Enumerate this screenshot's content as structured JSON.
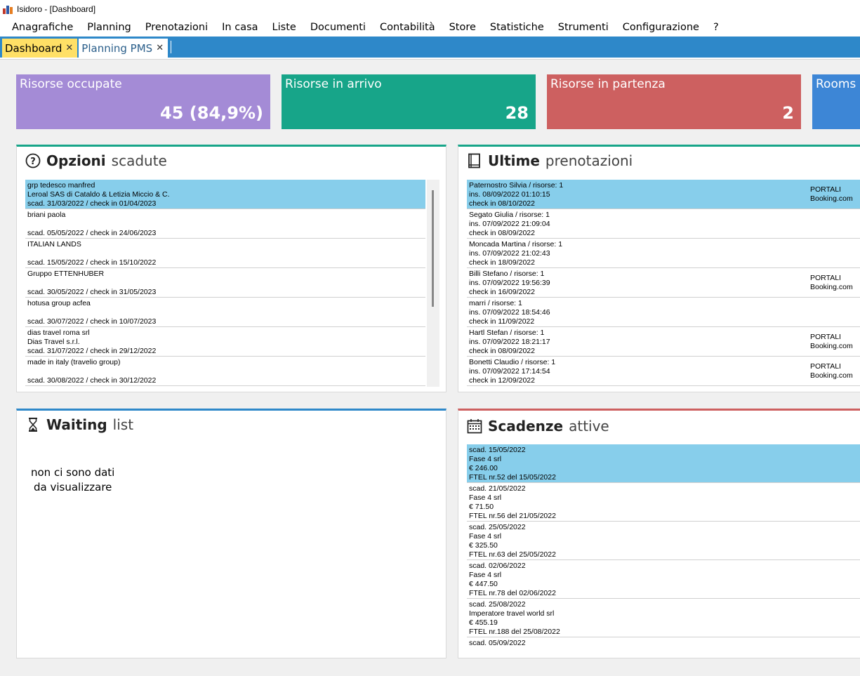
{
  "window": {
    "title": "Isidoro - [Dashboard]"
  },
  "menu": [
    "Anagrafiche",
    "Planning",
    "Prenotazioni",
    "In casa",
    "Liste",
    "Documenti",
    "Contabilità",
    "Store",
    "Statistiche",
    "Strumenti",
    "Configurazione",
    "?"
  ],
  "tabs": [
    {
      "label": "Dashboard",
      "close": "✕"
    },
    {
      "label": "Planning PMS",
      "close": "✕"
    }
  ],
  "kpis": [
    {
      "label": "Risorse occupate",
      "value": "45 (84,9%)",
      "color": "#a48bd6"
    },
    {
      "label": "Risorse in arrivo",
      "value": "28",
      "color": "#17a589"
    },
    {
      "label": "Risorse in partenza",
      "value": "2",
      "color": "#cd6060"
    },
    {
      "label": "Rooms",
      "value": "",
      "color": "#3d86d6"
    }
  ],
  "opzioni": {
    "title_bold": "Opzioni",
    "title_light": "scadute",
    "accent": "#17a589",
    "rows": [
      {
        "l1": "grp tedesco manfred",
        "l2": "Leroal SAS di Cataldo & Letizia Miccio & C.",
        "l3": "scad. 31/03/2022 / check in 01/04/2023"
      },
      {
        "l1": "briani paola",
        "l2": "",
        "l3": "scad. 05/05/2022 / check in 24/06/2023"
      },
      {
        "l1": "ITALIAN LANDS",
        "l2": "",
        "l3": "scad. 15/05/2022 / check in 15/10/2022"
      },
      {
        "l1": "Gruppo ETTENHUBER",
        "l2": "",
        "l3": "scad. 30/05/2022 / check in 31/05/2023"
      },
      {
        "l1": "hotusa group acfea",
        "l2": "",
        "l3": "scad. 30/07/2022 / check in 10/07/2023"
      },
      {
        "l1": "dias travel roma srl",
        "l2": "Dias Travel s.r.l.",
        "l3": "scad. 31/07/2022 / check in 29/12/2022"
      },
      {
        "l1": "made in italy (travelio group)",
        "l2": "",
        "l3": "scad. 30/08/2022 / check in 30/12/2022"
      }
    ]
  },
  "ultime": {
    "title_bold": "Ultime",
    "title_light": "prenotazioni",
    "accent": "#17a589",
    "rows": [
      {
        "l1": "Paternostro Silvia / risorse: 1",
        "l2": "ins. 08/09/2022 01:10:15",
        "l3": "check in 08/10/2022",
        "r1": "PORTALI",
        "r2": "Booking.com"
      },
      {
        "l1": "Segato Giulia / risorse: 1",
        "l2": "ins. 07/09/2022 21:09:04",
        "l3": "check in 08/09/2022",
        "r1": "",
        "r2": ""
      },
      {
        "l1": "Moncada Martina / risorse: 1",
        "l2": "ins. 07/09/2022 21:02:43",
        "l3": "check in 18/09/2022",
        "r1": "",
        "r2": ""
      },
      {
        "l1": "Billi Stefano / risorse: 1",
        "l2": "ins. 07/09/2022 19:56:39",
        "l3": "check in 16/09/2022",
        "r1": "PORTALI",
        "r2": "Booking.com"
      },
      {
        "l1": "marri / risorse: 1",
        "l2": "ins. 07/09/2022 18:54:46",
        "l3": "check in 11/09/2022",
        "r1": "",
        "r2": ""
      },
      {
        "l1": "Hartl Stefan / risorse: 1",
        "l2": "ins. 07/09/2022 18:21:17",
        "l3": "check in 08/09/2022",
        "r1": "PORTALI",
        "r2": "Booking.com"
      },
      {
        "l1": "Bonetti Claudio / risorse: 1",
        "l2": "ins. 07/09/2022 17:14:54",
        "l3": "check in 12/09/2022",
        "r1": "PORTALI",
        "r2": "Booking.com"
      }
    ]
  },
  "waiting": {
    "title_bold": "Waiting",
    "title_light": "list",
    "accent": "#2e88c9",
    "empty_line1": "non ci sono dati",
    "empty_line2": "da visualizzare"
  },
  "scadenze": {
    "title_bold": "Scadenze",
    "title_light": "attive",
    "accent": "#cd6060",
    "rows": [
      {
        "l1": "scad. 15/05/2022",
        "l2": "Fase 4 srl",
        "l3": "€ 246.00",
        "l4": "FTEL nr.52 del 15/05/2022"
      },
      {
        "l1": "scad. 21/05/2022",
        "l2": "Fase 4 srl",
        "l3": "€ 71.50",
        "l4": "FTEL nr.56 del 21/05/2022"
      },
      {
        "l1": "scad. 25/05/2022",
        "l2": "Fase 4 srl",
        "l3": "€ 325.50",
        "l4": "FTEL nr.63 del 25/05/2022"
      },
      {
        "l1": "scad. 02/06/2022",
        "l2": "Fase 4 srl",
        "l3": "€ 447.50",
        "l4": "FTEL nr.78 del 02/06/2022"
      },
      {
        "l1": "scad. 25/08/2022",
        "l2": "Imperatore travel world srl",
        "l3": "€ 455.19",
        "l4": "FTEL nr.188 del 25/08/2022"
      },
      {
        "l1": "scad. 05/09/2022",
        "l2": "",
        "l3": "",
        "l4": ""
      }
    ]
  }
}
